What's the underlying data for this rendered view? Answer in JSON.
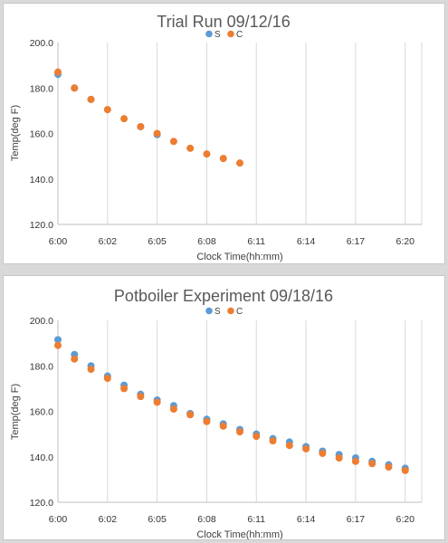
{
  "chart_data": [
    {
      "type": "scatter",
      "title": "Trial Run 09/12/16",
      "xlabel": "Clock Time(hh:mm)",
      "ylabel": "Temp(deg F)",
      "ylim": [
        120,
        200
      ],
      "yticks": [
        "200.0",
        "180.0",
        "160.0",
        "140.0",
        "120.0"
      ],
      "xticks": [
        "6:00",
        "6:02",
        "6:05",
        "6:08",
        "6:11",
        "6:14",
        "6:17",
        "6:20"
      ],
      "legend_position": "top",
      "grid": "vertical",
      "series": [
        {
          "name": "S",
          "color": "#5b9bd5",
          "points": [
            [
              0,
              186
            ],
            [
              1,
              180
            ],
            [
              2,
              175
            ],
            [
              5,
              163
            ],
            [
              6,
              159.5
            ]
          ]
        },
        {
          "name": "C",
          "color": "#ed7d31",
          "points": [
            [
              0,
              187
            ],
            [
              1,
              180
            ],
            [
              2,
              175
            ],
            [
              3,
              170.5
            ],
            [
              4,
              166.5
            ],
            [
              5,
              163
            ],
            [
              6,
              160
            ],
            [
              7,
              156.5
            ],
            [
              8,
              153.5
            ],
            [
              9,
              151
            ],
            [
              10,
              149
            ],
            [
              11,
              147
            ]
          ]
        }
      ]
    },
    {
      "type": "scatter",
      "title": "Potboiler Experiment 09/18/16",
      "xlabel": "Clock Time(hh:mm)",
      "ylabel": "Temp(deg F)",
      "ylim": [
        120,
        200
      ],
      "yticks": [
        "200.0",
        "180.0",
        "160.0",
        "140.0",
        "120.0"
      ],
      "xticks": [
        "6:00",
        "6:02",
        "6:05",
        "6:08",
        "6:11",
        "6:14",
        "6:17",
        "6:20"
      ],
      "legend_position": "top",
      "grid": "vertical",
      "series": [
        {
          "name": "S",
          "color": "#5b9bd5",
          "points": [
            [
              0,
              191.5
            ],
            [
              1,
              185
            ],
            [
              2,
              180
            ],
            [
              3,
              175.5
            ],
            [
              4,
              171.5
            ],
            [
              5,
              167.5
            ],
            [
              6,
              165
            ],
            [
              7,
              162.5
            ],
            [
              8,
              159
            ],
            [
              9,
              156.5
            ],
            [
              10,
              154.5
            ],
            [
              11,
              152
            ],
            [
              12,
              150
            ],
            [
              13,
              148
            ],
            [
              14,
              146.5
            ],
            [
              15,
              144.5
            ],
            [
              16,
              142.5
            ],
            [
              17,
              141
            ],
            [
              18,
              139.5
            ],
            [
              19,
              138
            ],
            [
              20,
              136.5
            ],
            [
              21,
              135
            ]
          ]
        },
        {
          "name": "C",
          "color": "#ed7d31",
          "points": [
            [
              0,
              189
            ],
            [
              1,
              183
            ],
            [
              2,
              178.5
            ],
            [
              3,
              174.5
            ],
            [
              4,
              170
            ],
            [
              5,
              166.5
            ],
            [
              6,
              164
            ],
            [
              7,
              161
            ],
            [
              8,
              158.5
            ],
            [
              9,
              155.5
            ],
            [
              10,
              153.5
            ],
            [
              11,
              151
            ],
            [
              12,
              149
            ],
            [
              13,
              147
            ],
            [
              14,
              145
            ],
            [
              15,
              143.5
            ],
            [
              16,
              141.5
            ],
            [
              17,
              139.5
            ],
            [
              18,
              138
            ],
            [
              19,
              137
            ],
            [
              20,
              135.5
            ],
            [
              21,
              134
            ]
          ]
        }
      ]
    }
  ]
}
